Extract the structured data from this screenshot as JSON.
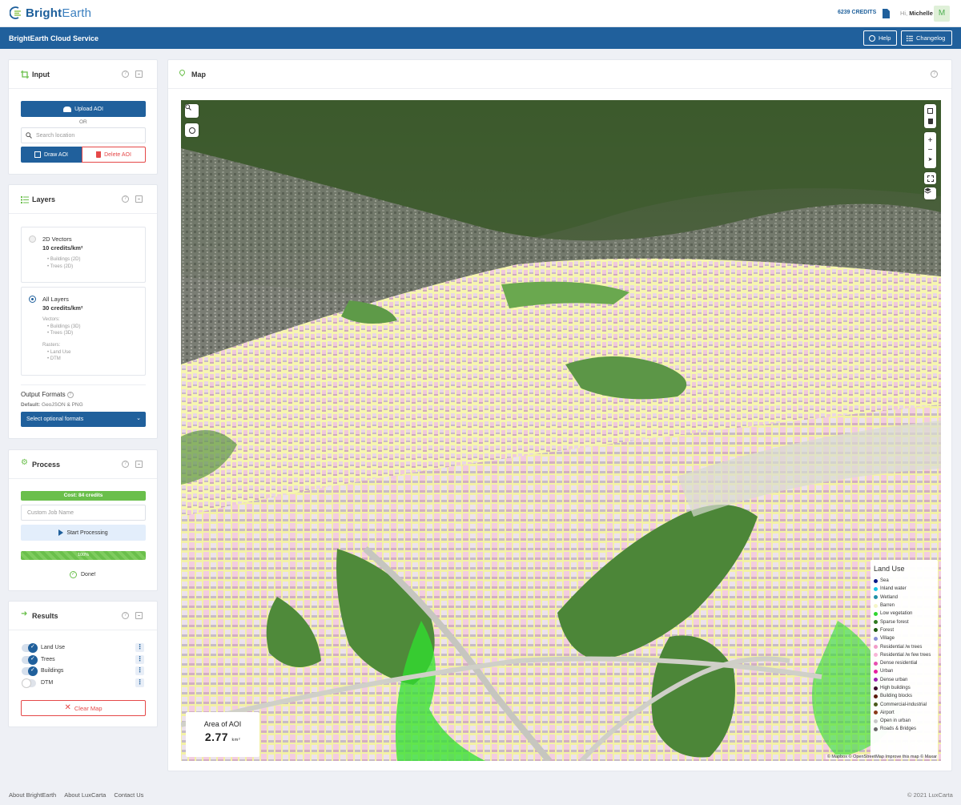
{
  "app": {
    "logo_strong": "Bright",
    "logo_light": "Earth",
    "credits": "6239 CREDITS",
    "greeting_prefix": "Hi,",
    "greeting_name": "Michelle",
    "avatar_initial": "M"
  },
  "service_bar": {
    "title": "BrightEarth Cloud Service",
    "help_label": "Help",
    "changelog_label": "Changelog"
  },
  "input_panel": {
    "title": "Input",
    "upload_label": "Upload AOI",
    "or_label": "OR",
    "search_placeholder": "Search location",
    "draw_label": "Draw AOI",
    "delete_label": "Delete AOI"
  },
  "layers_panel": {
    "title": "Layers",
    "options": [
      {
        "name": "2D Vectors",
        "cost": "10 credits/km²",
        "selected": false,
        "details": [
          "• Buildings (2D)",
          "• Trees (2D)"
        ]
      },
      {
        "name": "All Layers",
        "cost": "30 credits/km²",
        "selected": true,
        "vectors_label": "Vectors:",
        "vectors": [
          "• Buildings (3D)",
          "• Trees (3D)"
        ],
        "rasters_label": "Rasters:",
        "rasters": [
          "• Land Use",
          "• DTM"
        ]
      }
    ],
    "output_formats_label": "Output Formats",
    "default_label": "Default:",
    "default_value": "GeoJSON & PNG",
    "select_label": "Select optional formats"
  },
  "process_panel": {
    "title": "Process",
    "cost_label": "Cost: 84 credits",
    "job_placeholder": "Custom Job Name",
    "start_label": "Start Processing",
    "progress_label": "100%",
    "progress_value": 1.0,
    "done_label": "Done!"
  },
  "results_panel": {
    "title": "Results",
    "items": [
      {
        "label": "Land Use",
        "on": true
      },
      {
        "label": "Trees",
        "on": true
      },
      {
        "label": "Buildings",
        "on": true
      },
      {
        "label": "DTM",
        "on": false
      }
    ],
    "clear_label": "Clear Map"
  },
  "map_panel": {
    "title": "Map",
    "legend_title": "Land Use",
    "legend": [
      {
        "label": "Sea",
        "color": "#0a1a8a"
      },
      {
        "label": "Inland water",
        "color": "#19c6e6"
      },
      {
        "label": "Wetland",
        "color": "#1f8fa6"
      },
      {
        "label": "Barren",
        "color": "#f5f5c8"
      },
      {
        "label": "Low vegetation",
        "color": "#2fd62f"
      },
      {
        "label": "Sparse forest",
        "color": "#2f7a1f"
      },
      {
        "label": "Forest",
        "color": "#1f5a10"
      },
      {
        "label": "Village",
        "color": "#8a8fd6"
      },
      {
        "label": "Residential /w trees",
        "color": "#f29cc9"
      },
      {
        "label": "Residential /w few trees",
        "color": "#f7b6d8"
      },
      {
        "label": "Dense residential",
        "color": "#e64fb0"
      },
      {
        "label": "Urban",
        "color": "#e61fa0"
      },
      {
        "label": "Dense urban",
        "color": "#9a1fb0"
      },
      {
        "label": "High buildings",
        "color": "#3a0a2a"
      },
      {
        "label": "Building blocks",
        "color": "#5a1a0a"
      },
      {
        "label": "Commercial-industrial",
        "color": "#4a5a1a"
      },
      {
        "label": "Airport",
        "color": "#8a3a1a"
      },
      {
        "label": "Open in urban",
        "color": "#c8c8c8"
      },
      {
        "label": "Roads & Bridges",
        "color": "#6a6a6a"
      }
    ],
    "area_title": "Area of AOI",
    "area_value": "2.77",
    "area_unit": "km²",
    "mapbox_label": "mapbox",
    "attribution": "© Mapbox © OpenStreetMap Improve this map © Maxar"
  },
  "footer": {
    "links": [
      "About BrightEarth",
      "About LuxCarta",
      "Contact Us"
    ],
    "copyright": "© 2021   LuxCarta"
  },
  "colors": {
    "brand": "#20609c",
    "success": "#6abf4b",
    "danger": "#e54848"
  }
}
